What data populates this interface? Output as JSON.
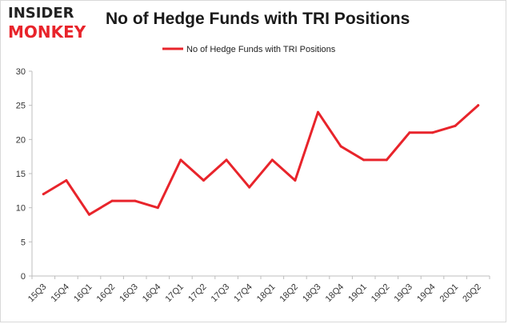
{
  "logo": {
    "line1": "INSIDER",
    "line2": "MONKEY",
    "line1_color": "#222222",
    "line2_color": "#e8242b"
  },
  "chart_data": {
    "type": "line",
    "title": "No of Hedge Funds with TRI Positions",
    "xlabel": "",
    "ylabel": "",
    "categories": [
      "15Q3",
      "15Q4",
      "16Q1",
      "16Q2",
      "16Q3",
      "16Q4",
      "17Q1",
      "17Q2",
      "17Q3",
      "17Q4",
      "18Q1",
      "18Q2",
      "18Q3",
      "18Q4",
      "19Q1",
      "19Q2",
      "19Q3",
      "19Q4",
      "20Q1",
      "20Q2"
    ],
    "series": [
      {
        "name": "No of Hedge Funds with TRI Positions",
        "color": "#e8242b",
        "values": [
          12,
          14,
          9,
          11,
          11,
          10,
          17,
          14,
          17,
          13,
          17,
          14,
          24,
          19,
          17,
          17,
          21,
          21,
          22,
          25
        ]
      }
    ],
    "ylim": [
      0,
      30
    ],
    "yticks": [
      0,
      5,
      10,
      15,
      20,
      25,
      30
    ],
    "grid": false,
    "legend_position": "top-center"
  }
}
